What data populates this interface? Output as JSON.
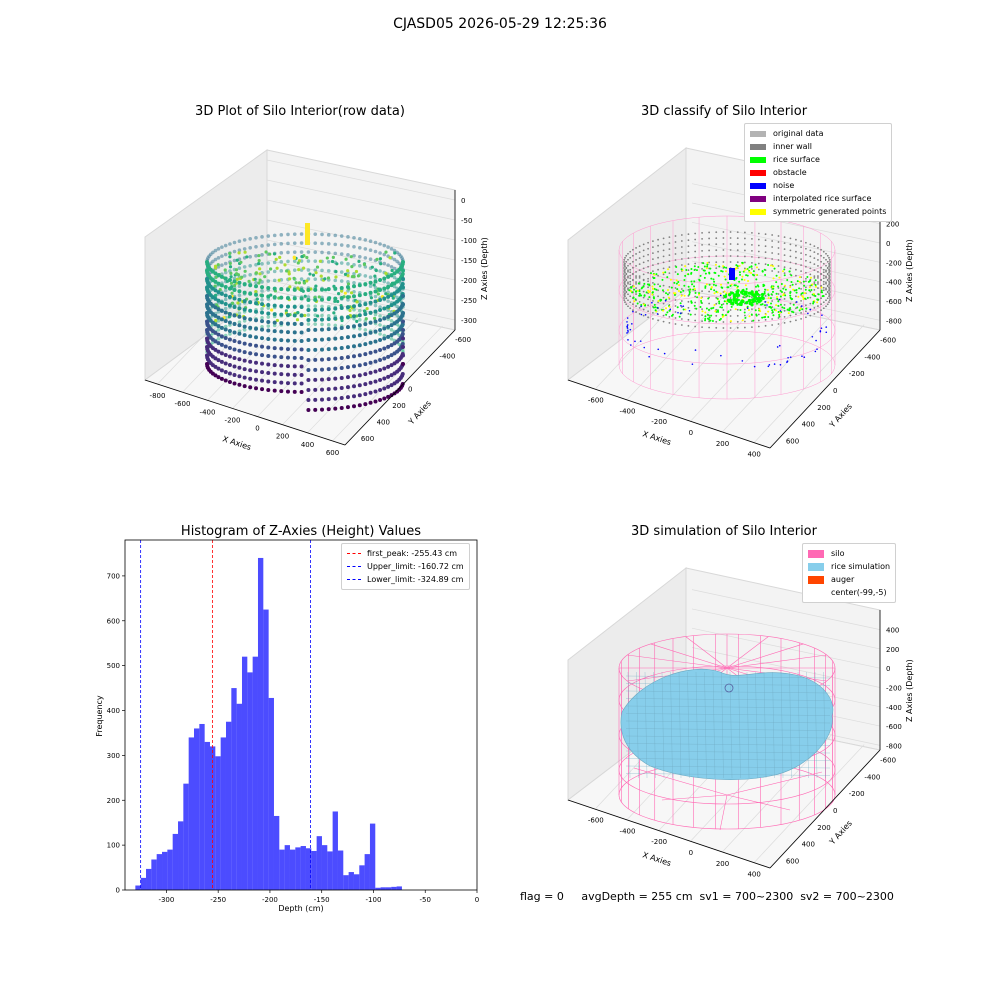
{
  "suptitle": "CJASD05 2026-05-29 12:25:36",
  "panels": {
    "raw": {
      "title": "3D Plot of Silo Interior(row data)",
      "xlabel": "X Axies",
      "ylabel": "Y Axies",
      "zlabel": "Z Axies (Depth)",
      "xticks": [
        "-800",
        "-600",
        "-400",
        "-200",
        "0",
        "200",
        "400",
        "600"
      ],
      "yticks": [
        "600",
        "400",
        "200",
        "0",
        "-200",
        "-400",
        "-600"
      ],
      "zticks": [
        "0",
        "-50",
        "-100",
        "-150",
        "-200",
        "-250",
        "-300"
      ]
    },
    "classify": {
      "title": "3D classify of Silo Interior",
      "xlabel": "X Axies",
      "ylabel": "Y Axies",
      "zlabel": "Z Axies (Depth)",
      "xticks": [
        "-600",
        "-400",
        "-200",
        "0",
        "200",
        "400"
      ],
      "yticks": [
        "600",
        "400",
        "200",
        "0",
        "-200",
        "-400",
        "-600"
      ],
      "zticks": [
        "200",
        "0",
        "-200",
        "-400",
        "-600",
        "-800"
      ],
      "legend": [
        {
          "label": "original data",
          "color": "#b3b3b3"
        },
        {
          "label": "inner wall",
          "color": "#808080"
        },
        {
          "label": "rice surface",
          "color": "#00ff00"
        },
        {
          "label": "obstacle",
          "color": "#ff0000"
        },
        {
          "label": "noise",
          "color": "#0000ff"
        },
        {
          "label": "interpolated rice surface",
          "color": "#800080"
        },
        {
          "label": "symmetric generated points",
          "color": "#ffff00"
        }
      ]
    },
    "simulation": {
      "title": "3D simulation of Silo Interior",
      "xlabel": "X Axies",
      "ylabel": "Y Axies",
      "zlabel": "Z Axies (Depth)",
      "xticks": [
        "-600",
        "-400",
        "-200",
        "0",
        "200",
        "400"
      ],
      "yticks": [
        "600",
        "400",
        "200",
        "0",
        "-200",
        "-400",
        "-600"
      ],
      "zticks": [
        "400",
        "200",
        "0",
        "-200",
        "-400",
        "-600",
        "-800"
      ],
      "legend": [
        {
          "label": "silo",
          "color": "#ff69b4"
        },
        {
          "label": "rice simulation",
          "color": "#87ceeb"
        },
        {
          "label": "auger",
          "color": "#ff4500"
        },
        {
          "label": "center(-99,-5)",
          "color": "#ffffff"
        }
      ]
    }
  },
  "chart_data": {
    "type": "bar",
    "title": "Histogram of Z-Axies (Height) Values",
    "xlabel": "Depth (cm)",
    "ylabel": "Frequency",
    "xlim": [
      -340,
      0
    ],
    "ylim": [
      0,
      780
    ],
    "xticks": [
      -300,
      -250,
      -200,
      -150,
      -100,
      -50,
      0
    ],
    "yticks": [
      0,
      100,
      200,
      300,
      400,
      500,
      600,
      700
    ],
    "bar_color": "#0000ff",
    "bin_start": -330,
    "bin_width": 5.15,
    "values": [
      10,
      27,
      47,
      68,
      80,
      85,
      90,
      125,
      153,
      237,
      340,
      360,
      370,
      330,
      320,
      298,
      340,
      375,
      450,
      415,
      520,
      485,
      520,
      740,
      625,
      428,
      165,
      90,
      100,
      90,
      95,
      98,
      93,
      87,
      120,
      100,
      86,
      175,
      88,
      33,
      40,
      35,
      55,
      80,
      148,
      5,
      6,
      6,
      7,
      8
    ],
    "vlines": [
      {
        "label": "first_peak: -255.43 cm",
        "x": -255.43,
        "color": "#ff0000"
      },
      {
        "label": "Upper_limit: -160.72 cm",
        "x": -160.72,
        "color": "#0000ff"
      },
      {
        "label": "Lower_limit: -324.89 cm",
        "x": -324.89,
        "color": "#0000ff"
      }
    ],
    "legend_position": "upper right"
  },
  "stats": {
    "text": "flag = 0     avgDepth = 255 cm  sv1 = 700~2300  sv2 = 700~2300"
  }
}
